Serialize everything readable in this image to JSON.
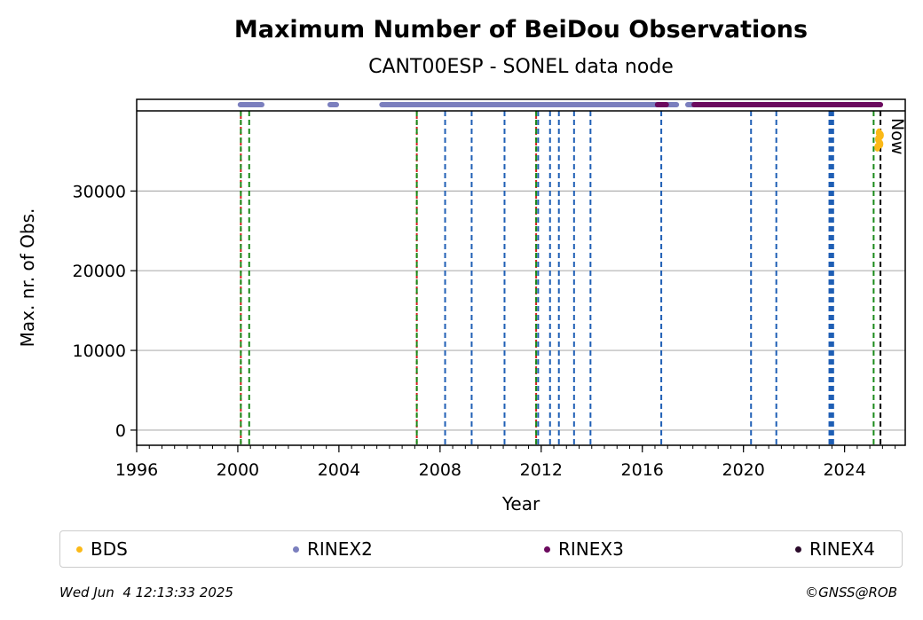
{
  "chart_data": {
    "type": "scatter",
    "title": "Maximum Number of BeiDou Observations",
    "subtitle": "CANT00ESP - SONEL data node",
    "xlabel": "Year",
    "ylabel": "Max. nr. of Obs.",
    "xlim": [
      1996,
      2026.4
    ],
    "ylim": [
      -1900,
      41500
    ],
    "xticks": [
      1996,
      2000,
      2004,
      2008,
      2012,
      2016,
      2020,
      2024
    ],
    "yticks": [
      0,
      10000,
      20000,
      30000
    ],
    "grid_y": true,
    "now_label": "Now",
    "now_x": 2025.42,
    "top_band_y": 40000,
    "series": [
      {
        "name": "BDS",
        "color": "#fbb917",
        "points": [
          [
            2025.3,
            35500
          ],
          [
            2025.33,
            36500
          ],
          [
            2025.36,
            37300
          ],
          [
            2025.38,
            36800
          ],
          [
            2025.41,
            35900
          ],
          [
            2025.43,
            37000
          ]
        ]
      },
      {
        "name": "RINEX2",
        "color": "#7b7fbe",
        "segments": [
          [
            2000.1,
            2000.95
          ],
          [
            2003.65,
            2003.9
          ],
          [
            2005.7,
            2016.6
          ],
          [
            2016.95,
            2017.35
          ],
          [
            2017.8,
            2018.05
          ]
        ]
      },
      {
        "name": "RINEX3",
        "color": "#6b0a5e",
        "segments": [
          [
            2016.6,
            2016.95
          ],
          [
            2018.05,
            2025.42
          ]
        ]
      },
      {
        "name": "RINEX4",
        "color": "#2a0a2a",
        "segments": []
      }
    ],
    "vlines_red": [
      2000.12,
      2007.08,
      2011.8
    ],
    "vlines_green": [
      2000.12,
      2000.45,
      2007.08,
      2011.8,
      2025.15
    ],
    "vlines_blue": [
      2008.2,
      2009.25,
      2010.55,
      2011.88,
      2012.35,
      2012.7,
      2013.3,
      2013.95,
      2016.75,
      2020.3,
      2021.3,
      2023.4,
      2023.45,
      2023.5,
      2023.55
    ],
    "vlines_black": [
      2025.42
    ]
  },
  "footer": {
    "timestamp": "Wed Jun  4 12:13:33 2025",
    "credit": "©GNSS@ROB"
  }
}
